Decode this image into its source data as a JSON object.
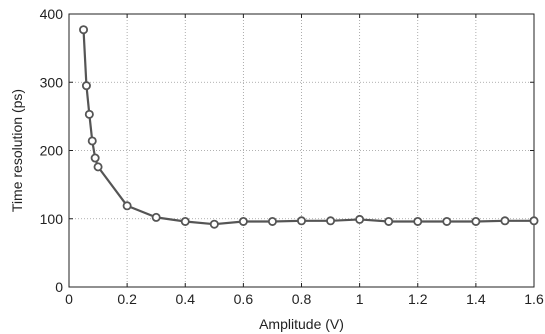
{
  "chart_data": {
    "type": "line",
    "title": "",
    "xlabel": "Amplitude (V)",
    "ylabel": "Time resolution (ps)",
    "xlim": [
      0,
      1.6
    ],
    "ylim": [
      0,
      400
    ],
    "xticks": [
      0,
      0.2,
      0.4,
      0.6,
      0.8,
      1,
      1.2,
      1.4,
      1.6
    ],
    "xtick_labels": [
      "0",
      "0.2",
      "0.4",
      "0.6",
      "0.8",
      "1",
      "1.2",
      "1.4",
      "1.6"
    ],
    "yticks": [
      0,
      100,
      200,
      300,
      400
    ],
    "ytick_labels": [
      "0",
      "100",
      "200",
      "300",
      "400"
    ],
    "grid": true,
    "series": [
      {
        "color": "#555555",
        "marker": "circle-open",
        "x": [
          0.05,
          0.06,
          0.07,
          0.08,
          0.09,
          0.1,
          0.2,
          0.3,
          0.4,
          0.5,
          0.6,
          0.7,
          0.8,
          0.9,
          1.0,
          1.1,
          1.2,
          1.3,
          1.4,
          1.5,
          1.6
        ],
        "y": [
          377,
          295,
          253,
          214,
          189,
          176,
          119,
          102,
          96,
          92,
          96,
          96,
          97,
          97,
          99,
          96,
          96,
          96,
          96,
          97,
          97
        ]
      }
    ]
  }
}
